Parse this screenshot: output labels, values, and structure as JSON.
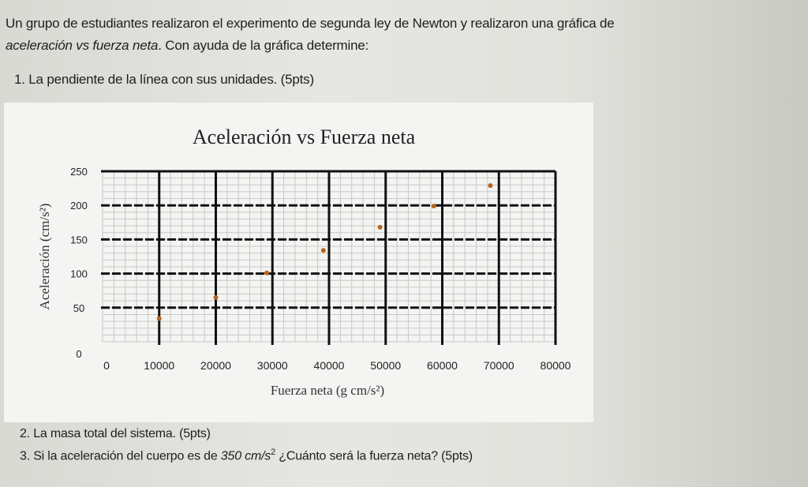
{
  "intro": {
    "line1": "Un grupo de estudiantes realizaron el experimento de segunda ley de Newton y realizaron una gráfica de",
    "line2_italic": "aceleración vs fuerza neta",
    "line2_rest": ". Con ayuda de la gráfica determine:"
  },
  "questions": {
    "q1": "1. La pendiente de la línea con sus unidades. (5pts)",
    "q2": "2. La masa total del sistema. (5pts)",
    "q3_start": "3. Si la aceleración del cuerpo es de ",
    "q3_value": "350 cm/s",
    "q3_exp": "2",
    "q3_end": " ¿Cuánto será la fuerza neta? (5pts)"
  },
  "colors": {
    "point": "#b5651d",
    "grid_major": "#111111",
    "grid_minor": "#c8c8c8"
  },
  "chart_data": {
    "type": "scatter",
    "title": "Aceleración vs Fuerza neta",
    "xlabel": "Fuerza neta (g cm/s²)",
    "ylabel": "Aceleración (cm/s²)",
    "xlim": [
      0,
      80000
    ],
    "ylim": [
      0,
      250
    ],
    "xticks": [
      "0",
      "10000",
      "20000",
      "30000",
      "40000",
      "50000",
      "60000",
      "70000",
      "80000"
    ],
    "yticks": [
      "0",
      "50",
      "100",
      "150",
      "200",
      "250"
    ],
    "grid": true,
    "points": [
      {
        "x": 10000,
        "y": 34
      },
      {
        "x": 20000,
        "y": 65
      },
      {
        "x": 29000,
        "y": 101
      },
      {
        "x": 39000,
        "y": 134
      },
      {
        "x": 49000,
        "y": 168
      },
      {
        "x": 58500,
        "y": 199
      },
      {
        "x": 68500,
        "y": 229
      }
    ]
  }
}
